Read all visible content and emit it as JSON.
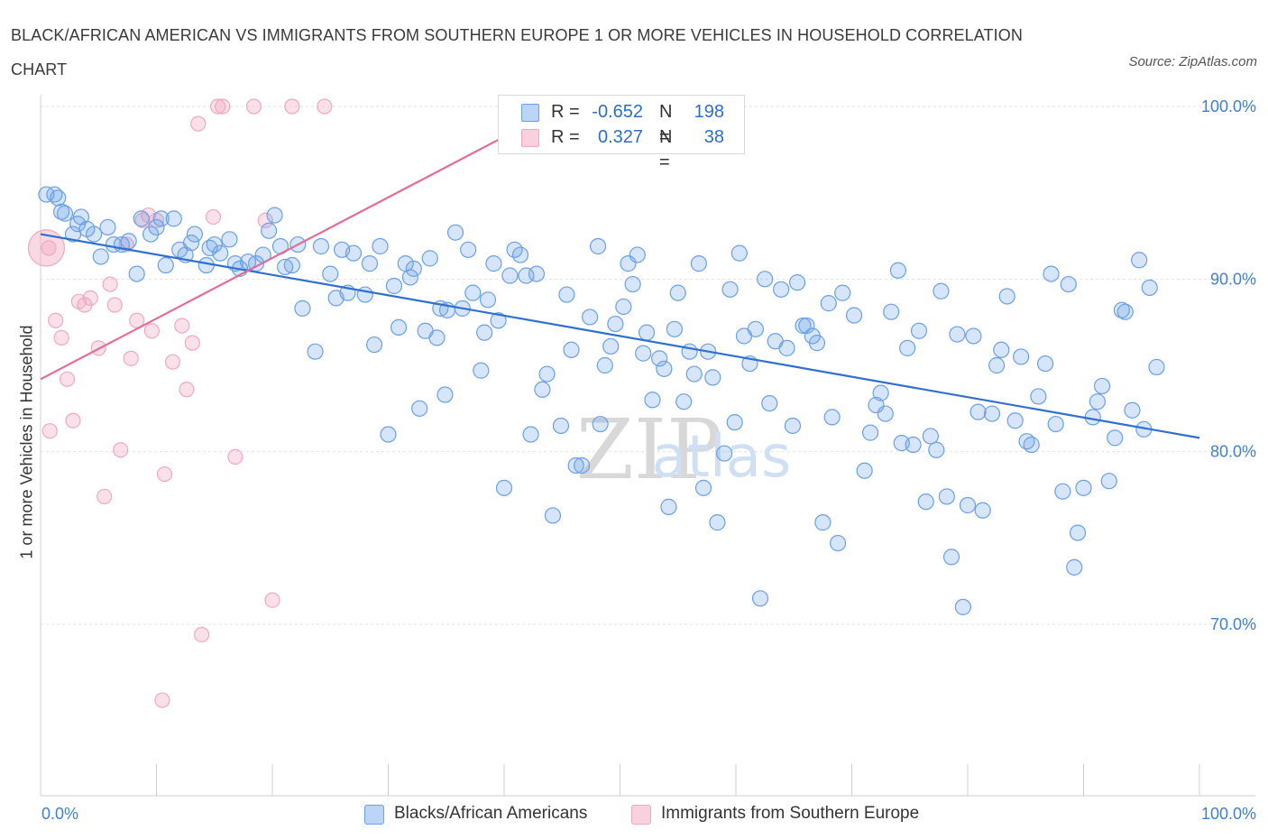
{
  "title": "BLACK/AFRICAN AMERICAN VS IMMIGRANTS FROM SOUTHERN EUROPE 1 OR MORE VEHICLES IN HOUSEHOLD CORRELATION CHART",
  "source": "Source: ZipAtlas.com",
  "watermark": {
    "zip": "ZIP",
    "atlas": "atlas"
  },
  "legend_top": [
    {
      "r_label": "R =",
      "r_value": "-0.652",
      "n_label": "N =",
      "n_value": "198",
      "color": "#6aa0e8"
    },
    {
      "r_label": "R =",
      "r_value": " 0.327",
      "n_label": "N =",
      "n_value": " 38",
      "color": "#f0a8bf"
    }
  ],
  "legend_bottom": [
    {
      "label": "Blacks/African Americans",
      "color": "#6aa0e8"
    },
    {
      "label": "Immigrants from Southern Europe",
      "color": "#f0a8bf"
    }
  ],
  "chart_data": {
    "type": "scatter",
    "title": "BLACK/AFRICAN AMERICAN VS IMMIGRANTS FROM SOUTHERN EUROPE 1 OR MORE VEHICLES IN HOUSEHOLD CORRELATION CHART",
    "xlabel": "",
    "ylabel": "1 or more Vehicles in Household",
    "x_tick_labels": [
      "0.0%",
      "100.0%"
    ],
    "y_tick_labels": [
      "100.0%",
      "90.0%",
      "80.0%",
      "70.0%"
    ],
    "y_tick_values": [
      100,
      90,
      80,
      70
    ],
    "xlim": [
      0,
      100
    ],
    "ylim": [
      60,
      100
    ],
    "grid": true,
    "legend_position": "bottom",
    "series": [
      {
        "name": "Blacks/African Americans",
        "color": "#6aa0e8",
        "line_color": "#2f6fce",
        "r": -0.652,
        "n": 198,
        "trend": {
          "x": [
            0,
            100
          ],
          "y": [
            92.6,
            80.8
          ]
        },
        "points": [
          [
            0.5,
            94.9
          ],
          [
            1.2,
            94.9
          ],
          [
            1.5,
            94.7
          ],
          [
            1.8,
            93.9
          ],
          [
            2.1,
            93.8
          ],
          [
            2.8,
            92.6
          ],
          [
            3.2,
            93.2
          ],
          [
            3.5,
            93.6
          ],
          [
            4.0,
            92.9
          ],
          [
            4.6,
            92.6
          ],
          [
            5.2,
            91.3
          ],
          [
            5.8,
            93.0
          ],
          [
            6.3,
            92.0
          ],
          [
            7.0,
            92.0
          ],
          [
            7.6,
            92.2
          ],
          [
            8.3,
            90.3
          ],
          [
            8.7,
            93.5
          ],
          [
            9.5,
            92.6
          ],
          [
            10.0,
            93.0
          ],
          [
            10.4,
            93.5
          ],
          [
            10.8,
            90.8
          ],
          [
            11.5,
            93.5
          ],
          [
            12.0,
            91.7
          ],
          [
            12.5,
            91.4
          ],
          [
            13.0,
            92.1
          ],
          [
            13.3,
            92.6
          ],
          [
            14.3,
            90.8
          ],
          [
            14.6,
            91.8
          ],
          [
            15.0,
            92.0
          ],
          [
            15.5,
            91.5
          ],
          [
            16.3,
            92.3
          ],
          [
            16.8,
            90.9
          ],
          [
            17.2,
            90.6
          ],
          [
            17.9,
            91.0
          ],
          [
            18.6,
            90.9
          ],
          [
            19.2,
            91.4
          ],
          [
            19.7,
            92.8
          ],
          [
            20.2,
            93.7
          ],
          [
            20.7,
            91.9
          ],
          [
            21.1,
            90.7
          ],
          [
            21.7,
            90.8
          ],
          [
            22.2,
            92.0
          ],
          [
            22.6,
            88.3
          ],
          [
            23.7,
            85.8
          ],
          [
            24.2,
            91.9
          ],
          [
            25.0,
            90.3
          ],
          [
            25.5,
            88.9
          ],
          [
            26.0,
            91.7
          ],
          [
            26.5,
            89.2
          ],
          [
            27.0,
            91.5
          ],
          [
            28.0,
            89.1
          ],
          [
            28.4,
            90.9
          ],
          [
            28.8,
            86.2
          ],
          [
            29.3,
            91.9
          ],
          [
            30.0,
            81.0
          ],
          [
            30.5,
            89.6
          ],
          [
            30.9,
            87.2
          ],
          [
            31.5,
            90.9
          ],
          [
            31.9,
            90.1
          ],
          [
            32.2,
            90.6
          ],
          [
            32.7,
            82.5
          ],
          [
            33.2,
            87.0
          ],
          [
            33.6,
            91.2
          ],
          [
            34.2,
            86.6
          ],
          [
            34.5,
            88.3
          ],
          [
            34.9,
            83.3
          ],
          [
            35.1,
            88.2
          ],
          [
            35.8,
            92.7
          ],
          [
            36.4,
            88.3
          ],
          [
            36.9,
            91.7
          ],
          [
            37.3,
            89.2
          ],
          [
            38.0,
            84.7
          ],
          [
            38.3,
            86.9
          ],
          [
            38.6,
            88.8
          ],
          [
            39.1,
            90.9
          ],
          [
            39.5,
            87.6
          ],
          [
            40.0,
            77.9
          ],
          [
            40.5,
            90.2
          ],
          [
            40.9,
            91.7
          ],
          [
            41.4,
            91.4
          ],
          [
            41.9,
            90.2
          ],
          [
            42.3,
            81.0
          ],
          [
            42.8,
            90.3
          ],
          [
            43.3,
            83.6
          ],
          [
            43.7,
            84.5
          ],
          [
            44.2,
            76.3
          ],
          [
            44.9,
            81.5
          ],
          [
            45.4,
            89.1
          ],
          [
            45.8,
            85.9
          ],
          [
            46.2,
            79.2
          ],
          [
            46.7,
            79.2
          ],
          [
            47.4,
            87.8
          ],
          [
            48.1,
            91.9
          ],
          [
            48.3,
            81.6
          ],
          [
            48.7,
            85.0
          ],
          [
            49.2,
            86.1
          ],
          [
            49.6,
            87.4
          ],
          [
            50.3,
            88.4
          ],
          [
            50.7,
            90.9
          ],
          [
            51.1,
            89.7
          ],
          [
            51.5,
            91.4
          ],
          [
            52.0,
            85.7
          ],
          [
            52.3,
            86.9
          ],
          [
            52.8,
            83.0
          ],
          [
            53.4,
            85.4
          ],
          [
            53.8,
            84.8
          ],
          [
            54.2,
            76.8
          ],
          [
            54.7,
            87.1
          ],
          [
            55.0,
            89.2
          ],
          [
            55.5,
            82.9
          ],
          [
            56.0,
            85.8
          ],
          [
            56.4,
            84.5
          ],
          [
            56.8,
            90.9
          ],
          [
            57.2,
            77.9
          ],
          [
            57.6,
            85.8
          ],
          [
            58.0,
            84.3
          ],
          [
            58.4,
            75.9
          ],
          [
            59.0,
            79.9
          ],
          [
            59.5,
            89.4
          ],
          [
            59.9,
            81.7
          ],
          [
            60.3,
            91.5
          ],
          [
            60.7,
            86.7
          ],
          [
            61.2,
            85.1
          ],
          [
            61.7,
            87.1
          ],
          [
            62.1,
            71.5
          ],
          [
            62.5,
            90.0
          ],
          [
            62.9,
            82.8
          ],
          [
            63.4,
            86.4
          ],
          [
            63.9,
            89.4
          ],
          [
            64.4,
            86.0
          ],
          [
            64.9,
            81.5
          ],
          [
            65.3,
            89.8
          ],
          [
            65.8,
            87.3
          ],
          [
            66.1,
            87.3
          ],
          [
            66.6,
            86.7
          ],
          [
            67.0,
            86.3
          ],
          [
            67.5,
            75.9
          ],
          [
            68.0,
            88.6
          ],
          [
            68.3,
            82.0
          ],
          [
            68.8,
            74.7
          ],
          [
            69.2,
            89.2
          ],
          [
            70.2,
            87.9
          ],
          [
            71.1,
            78.9
          ],
          [
            71.6,
            81.1
          ],
          [
            72.1,
            82.7
          ],
          [
            72.5,
            83.4
          ],
          [
            72.9,
            82.2
          ],
          [
            73.4,
            88.1
          ],
          [
            74.0,
            90.5
          ],
          [
            74.3,
            80.5
          ],
          [
            74.8,
            86.0
          ],
          [
            75.3,
            80.4
          ],
          [
            75.8,
            87.0
          ],
          [
            76.4,
            77.1
          ],
          [
            76.8,
            80.9
          ],
          [
            77.3,
            80.1
          ],
          [
            77.7,
            89.3
          ],
          [
            78.2,
            77.4
          ],
          [
            78.6,
            73.9
          ],
          [
            79.1,
            86.8
          ],
          [
            79.6,
            71.0
          ],
          [
            80.0,
            76.9
          ],
          [
            80.5,
            86.7
          ],
          [
            80.9,
            82.3
          ],
          [
            81.3,
            76.6
          ],
          [
            82.1,
            82.2
          ],
          [
            82.5,
            85.0
          ],
          [
            82.9,
            85.9
          ],
          [
            83.4,
            89.0
          ],
          [
            84.1,
            81.8
          ],
          [
            84.6,
            85.5
          ],
          [
            85.1,
            80.6
          ],
          [
            85.5,
            80.4
          ],
          [
            86.1,
            83.2
          ],
          [
            86.7,
            85.1
          ],
          [
            87.2,
            90.3
          ],
          [
            87.6,
            81.6
          ],
          [
            88.2,
            77.7
          ],
          [
            88.7,
            89.7
          ],
          [
            89.2,
            73.3
          ],
          [
            89.5,
            75.3
          ],
          [
            90.0,
            77.9
          ],
          [
            90.8,
            82.0
          ],
          [
            91.2,
            82.9
          ],
          [
            91.6,
            83.8
          ],
          [
            92.2,
            78.3
          ],
          [
            92.7,
            80.8
          ],
          [
            93.3,
            88.2
          ],
          [
            93.6,
            88.1
          ],
          [
            94.2,
            82.4
          ],
          [
            94.8,
            91.1
          ],
          [
            95.2,
            81.3
          ],
          [
            95.7,
            89.5
          ],
          [
            96.3,
            84.9
          ]
        ]
      },
      {
        "name": "Immigrants from Southern Europe",
        "color": "#f0a8bf",
        "line_color": "#e36d98",
        "r": 0.327,
        "n": 38,
        "trend": {
          "x": [
            0,
            45
          ],
          "y": [
            84.2,
            100.0
          ]
        },
        "points": [
          [
            0.7,
            91.8
          ],
          [
            0.8,
            81.2
          ],
          [
            1.3,
            87.6
          ],
          [
            1.8,
            86.6
          ],
          [
            2.3,
            84.2
          ],
          [
            2.8,
            81.8
          ],
          [
            3.3,
            88.7
          ],
          [
            3.8,
            88.5
          ],
          [
            4.3,
            88.9
          ],
          [
            5.0,
            86.0
          ],
          [
            5.5,
            77.4
          ],
          [
            6.0,
            89.7
          ],
          [
            6.4,
            88.5
          ],
          [
            6.9,
            80.1
          ],
          [
            7.4,
            92.0
          ],
          [
            7.8,
            85.4
          ],
          [
            8.3,
            87.6
          ],
          [
            8.8,
            93.4
          ],
          [
            9.3,
            93.7
          ],
          [
            9.6,
            87.0
          ],
          [
            10.0,
            93.4
          ],
          [
            10.5,
            65.6
          ],
          [
            10.7,
            78.7
          ],
          [
            11.4,
            85.2
          ],
          [
            12.2,
            87.3
          ],
          [
            12.6,
            83.6
          ],
          [
            13.1,
            86.3
          ],
          [
            13.6,
            99.0
          ],
          [
            13.9,
            69.4
          ],
          [
            14.9,
            93.6
          ],
          [
            15.3,
            100.0
          ],
          [
            15.7,
            100.0
          ],
          [
            16.8,
            79.7
          ],
          [
            18.4,
            100.0
          ],
          [
            19.4,
            93.4
          ],
          [
            20.0,
            71.4
          ],
          [
            21.7,
            100.0
          ],
          [
            24.5,
            100.0
          ]
        ],
        "big_point": [
          0.5,
          91.8
        ]
      }
    ]
  }
}
